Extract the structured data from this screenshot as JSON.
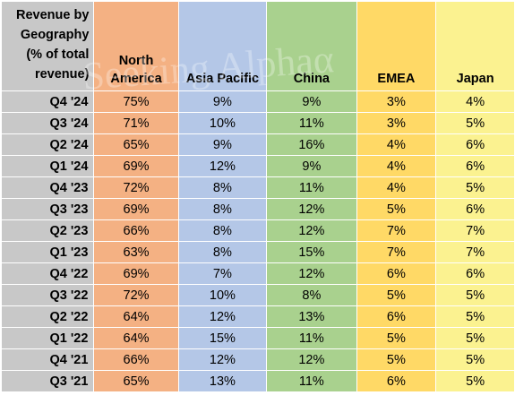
{
  "colors": {
    "label": "#c8c8c8",
    "north_america": "#f4b183",
    "asia_pacific": "#b4c7e7",
    "china": "#a9d18e",
    "emea": "#ffd966",
    "japan": "#fbf290"
  },
  "watermark": "Seeking Alphaα",
  "chart_data": {
    "type": "table",
    "title": "",
    "row_header": "Revenue by Geography (% of total revenue)",
    "columns": [
      "North America",
      "Asia Pacific",
      "China",
      "EMEA",
      "Japan"
    ],
    "rows": [
      {
        "label": "Q4 '24",
        "values": [
          "75%",
          "9%",
          "9%",
          "3%",
          "4%"
        ]
      },
      {
        "label": "Q3 '24",
        "values": [
          "71%",
          "10%",
          "11%",
          "3%",
          "5%"
        ]
      },
      {
        "label": "Q2 '24",
        "values": [
          "65%",
          "9%",
          "16%",
          "4%",
          "6%"
        ]
      },
      {
        "label": "Q1 '24",
        "values": [
          "69%",
          "12%",
          "9%",
          "4%",
          "6%"
        ]
      },
      {
        "label": "Q4 '23",
        "values": [
          "72%",
          "8%",
          "11%",
          "4%",
          "5%"
        ]
      },
      {
        "label": "Q3 '23",
        "values": [
          "69%",
          "8%",
          "12%",
          "5%",
          "6%"
        ]
      },
      {
        "label": "Q2 '23",
        "values": [
          "66%",
          "8%",
          "12%",
          "7%",
          "7%"
        ]
      },
      {
        "label": "Q1 '23",
        "values": [
          "63%",
          "8%",
          "15%",
          "7%",
          "7%"
        ]
      },
      {
        "label": "Q4 '22",
        "values": [
          "69%",
          "7%",
          "12%",
          "6%",
          "6%"
        ]
      },
      {
        "label": "Q3 '22",
        "values": [
          "72%",
          "10%",
          "8%",
          "5%",
          "5%"
        ]
      },
      {
        "label": "Q2 '22",
        "values": [
          "64%",
          "12%",
          "13%",
          "6%",
          "5%"
        ]
      },
      {
        "label": "Q1 '22",
        "values": [
          "64%",
          "15%",
          "11%",
          "5%",
          "5%"
        ]
      },
      {
        "label": "Q4 '21",
        "values": [
          "66%",
          "12%",
          "12%",
          "5%",
          "5%"
        ]
      },
      {
        "label": "Q3 '21",
        "values": [
          "65%",
          "13%",
          "11%",
          "6%",
          "5%"
        ]
      }
    ]
  }
}
